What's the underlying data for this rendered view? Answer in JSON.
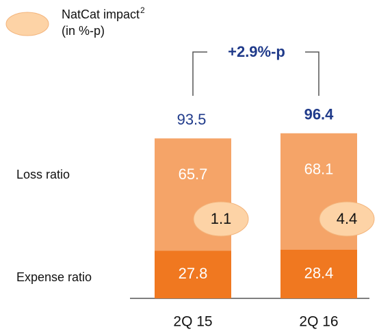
{
  "chart_data": {
    "type": "stacked_bar",
    "categories": [
      "2Q 15",
      "2Q 16"
    ],
    "series": [
      {
        "name": "Expense ratio",
        "color": "#f07820",
        "values": [
          27.8,
          28.4
        ]
      },
      {
        "name": "Loss ratio",
        "color": "#f5a468",
        "values": [
          65.7,
          68.1
        ]
      }
    ],
    "totals": [
      93.5,
      96.4
    ],
    "natcat": {
      "name": "NatCat impact",
      "footnote": "2",
      "unit": "(in %-p)",
      "color": "#fdd3a6",
      "values": [
        1.1,
        4.4
      ]
    },
    "annotation": "+2.9%-p"
  }
}
